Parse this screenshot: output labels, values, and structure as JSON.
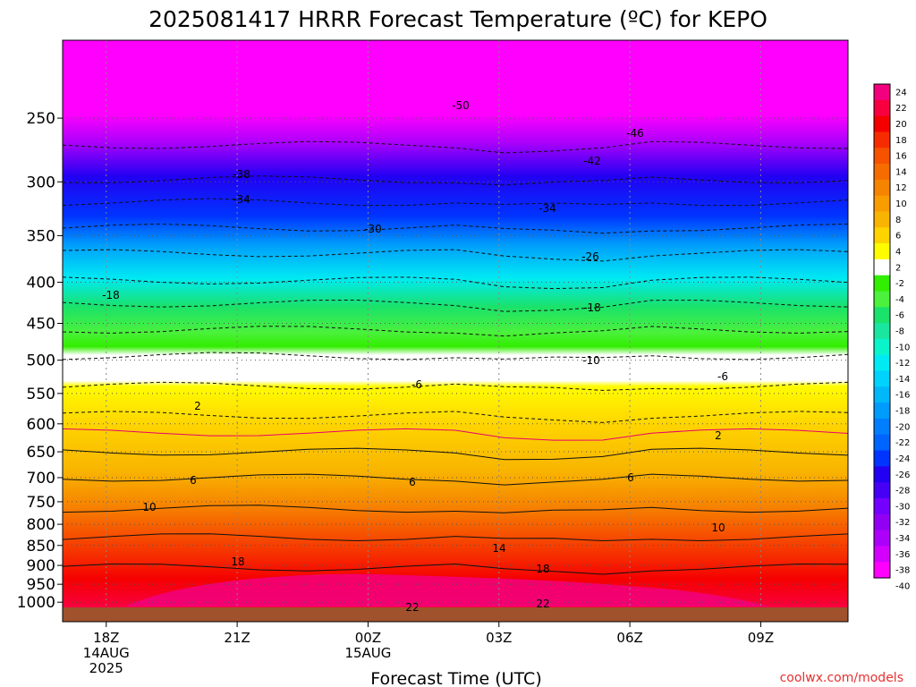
{
  "title": "2025081417 HRRR Forecast Temperature (ºC) for KEPO",
  "credit": "coolwx.com/models",
  "chart_data": {
    "type": "heatmap",
    "title": "2025081417 HRRR Forecast Temperature (ºC) for KEPO",
    "xlabel": "Forecast Time (UTC)",
    "ylabel": "",
    "x_ticks": [
      {
        "hours": 1,
        "lines": [
          "18Z",
          "14AUG",
          "2025"
        ]
      },
      {
        "hours": 4,
        "lines": [
          "21Z"
        ]
      },
      {
        "hours": 7,
        "lines": [
          "00Z",
          "15AUG"
        ]
      },
      {
        "hours": 10,
        "lines": [
          "03Z"
        ]
      },
      {
        "hours": 13,
        "lines": [
          "06Z"
        ]
      },
      {
        "hours": 16,
        "lines": [
          "09Z"
        ]
      }
    ],
    "x_range_hours": [
      0,
      18
    ],
    "y_ticks_hpa": [
      250,
      300,
      350,
      400,
      450,
      500,
      550,
      600,
      650,
      700,
      750,
      800,
      850,
      900,
      950,
      1000
    ],
    "y_range_hpa": [
      200,
      1015
    ],
    "y_scale": "log",
    "legend_ticks": [
      "24",
      "22",
      "20",
      "18",
      "16",
      "14",
      "12",
      "10",
      "8",
      "6",
      "4",
      "2",
      "-2",
      "-4",
      "-6",
      "-8",
      "-10",
      "-12",
      "-14",
      "-16",
      "-18",
      "-20",
      "-22",
      "-24",
      "-26",
      "-28",
      "-30",
      "-32",
      "-34",
      "-36",
      "-38",
      "-40"
    ],
    "colorbar_colors": [
      "#f2007e",
      "#f8003f",
      "#f50000",
      "#f62c00",
      "#f65200",
      "#f66c00",
      "#f68400",
      "#f89c00",
      "#f8b400",
      "#fed300",
      "#fffc00",
      "#ffffff",
      "#32ee00",
      "#4bf13c",
      "#1ae26a",
      "#1ae69f",
      "#0af4cc",
      "#00eaf3",
      "#00d2fe",
      "#00b7f9",
      "#009cfb",
      "#007efe",
      "#0064ff",
      "#0034ff",
      "#2200f2",
      "#4600f6",
      "#7400ff",
      "#9200f4",
      "#ac00fb",
      "#d400fe",
      "#ff00ff"
    ],
    "contour_labels": [
      "-50",
      "-46",
      "-42",
      "-38",
      "-34",
      "-34",
      "-30",
      "-26",
      "-18",
      "-18",
      "-10",
      "-6",
      "-6",
      "2",
      "2",
      "6",
      "6",
      "6",
      "10",
      "10",
      "14",
      "18",
      "18",
      "22",
      "22"
    ],
    "temperature_profile": {
      "pressure_hpa": [
        200,
        250,
        300,
        350,
        400,
        450,
        500,
        550,
        600,
        650,
        700,
        750,
        800,
        850,
        900,
        950,
        1000
      ],
      "temp_c_at_12z": [
        -55,
        -50,
        -41,
        -32,
        -24,
        -17,
        -10,
        -5,
        0,
        3,
        6,
        9,
        12,
        15,
        18,
        21,
        23
      ]
    },
    "surface_color": "#a0522d",
    "grid": true
  }
}
